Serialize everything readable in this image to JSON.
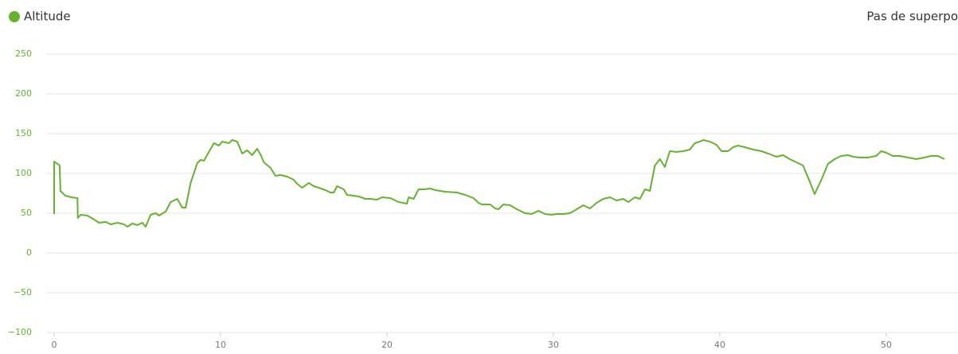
{
  "chart_data": {
    "type": "line",
    "legend_label": "Altitude",
    "overlay_label": "Pas de superpo",
    "series": [
      {
        "name": "Altitude",
        "color": "#62b42b",
        "x": [
          0,
          0,
          0.33,
          0.38,
          0.67,
          1.05,
          1.4,
          1.42,
          1.6,
          2.0,
          2.4,
          2.7,
          3.1,
          3.4,
          3.8,
          4.2,
          4.4,
          4.7,
          5.0,
          5.3,
          5.5,
          5.8,
          6.1,
          6.3,
          6.7,
          7.0,
          7.4,
          7.7,
          7.9,
          8.2,
          8.6,
          8.8,
          9.0,
          9.3,
          9.6,
          9.9,
          10.1,
          10.5,
          10.7,
          11.0,
          11.3,
          11.6,
          11.9,
          12.2,
          12.4,
          12.6,
          13.0,
          13.3,
          13.6,
          14.0,
          14.4,
          14.6,
          14.9,
          15.3,
          15.6,
          15.9,
          16.3,
          16.6,
          16.8,
          17.0,
          17.4,
          17.6,
          18.0,
          18.3,
          18.7,
          19.0,
          19.4,
          19.7,
          20.2,
          20.7,
          21.2,
          21.3,
          21.6,
          21.9,
          22.2,
          22.6,
          22.9,
          23.5,
          24.2,
          24.7,
          25.2,
          25.5,
          25.7,
          26.2,
          26.5,
          26.7,
          27.0,
          27.4,
          27.8,
          28.3,
          28.7,
          29.1,
          29.5,
          29.9,
          30.2,
          30.6,
          31.0,
          31.4,
          31.8,
          32.2,
          32.6,
          33.0,
          33.4,
          33.8,
          34.2,
          34.5,
          34.9,
          35.2,
          35.5,
          35.8,
          36.1,
          36.4,
          36.7,
          37.0,
          37.4,
          37.8,
          38.2,
          38.5,
          38.8,
          39.0,
          39.4,
          39.8,
          40.1,
          40.5,
          40.8,
          41.1,
          41.5,
          42.0,
          42.5,
          42.9,
          43.4,
          43.8,
          44.2,
          44.6,
          45.0,
          45.4,
          45.7,
          46.1,
          46.5,
          46.9,
          47.3,
          47.7,
          48.0,
          48.4,
          48.9,
          49.4,
          49.7,
          50.0,
          50.4,
          50.8,
          51.3,
          51.8,
          52.3,
          52.7,
          53.1,
          53.5
        ],
        "values": [
          49,
          115,
          110,
          78,
          72,
          70,
          69,
          44,
          48,
          47,
          42,
          38,
          39,
          36,
          38,
          36,
          33,
          37,
          35,
          38,
          33,
          48,
          50,
          47,
          52,
          64,
          68,
          57,
          57,
          88,
          113,
          117,
          116,
          127,
          138,
          135,
          140,
          138,
          142,
          140,
          125,
          129,
          123,
          131,
          124,
          114,
          107,
          97,
          98,
          96,
          92,
          87,
          82,
          88,
          84,
          82,
          79,
          76,
          76,
          84,
          80,
          73,
          72,
          71,
          68,
          68,
          67,
          70,
          69,
          64,
          62,
          70,
          68,
          80,
          80,
          81,
          79,
          77,
          76,
          73,
          69,
          63,
          61,
          61,
          56,
          55,
          61,
          60,
          55,
          50,
          49,
          53,
          49,
          48,
          49,
          49,
          50,
          55,
          60,
          56,
          63,
          68,
          70,
          66,
          68,
          64,
          70,
          68,
          80,
          78,
          110,
          118,
          108,
          128,
          127,
          128,
          130,
          138,
          140,
          142,
          140,
          136,
          128,
          128,
          133,
          135,
          133,
          130,
          128,
          125,
          121,
          123,
          118,
          114,
          110,
          90,
          74,
          92,
          112,
          118,
          122,
          123,
          121,
          120,
          120,
          122,
          128,
          126,
          122,
          122,
          120,
          118,
          120,
          122,
          122,
          118
        ]
      }
    ],
    "xlim": [
      0,
      53.5
    ],
    "xticks": [
      0,
      10,
      20,
      30,
      40,
      50
    ],
    "ylim": [
      -100,
      250
    ],
    "yticks": [
      {
        "value": -100,
        "label": "−100"
      },
      {
        "value": -50,
        "label": "−50"
      },
      0,
      50,
      100,
      150,
      200,
      250
    ],
    "grid": true
  }
}
